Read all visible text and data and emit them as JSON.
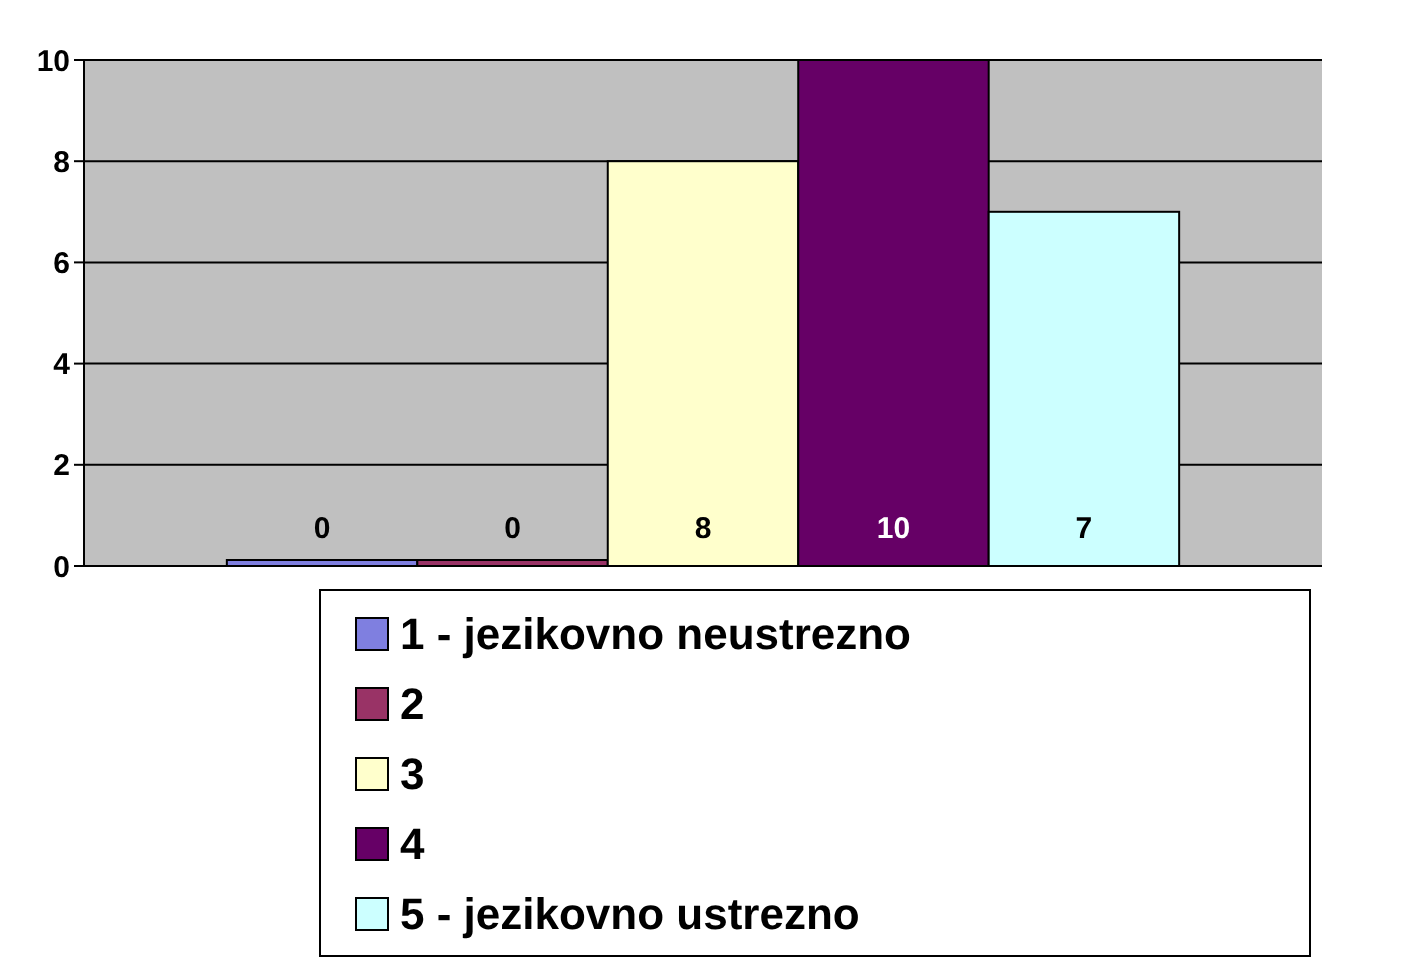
{
  "chart_data": {
    "type": "bar",
    "categories": [
      null
    ],
    "series": [
      {
        "name": "1 - jezikovno neustrezno",
        "color": "#7f7fe0",
        "values": [
          0
        ]
      },
      {
        "name": "2",
        "color": "#993366",
        "values": [
          0
        ]
      },
      {
        "name": "3",
        "color": "#ffffcc",
        "values": [
          8
        ]
      },
      {
        "name": "4",
        "color": "#660066",
        "values": [
          10
        ]
      },
      {
        "name": "5 - jezikovno ustrezno",
        "color": "#ccffff",
        "values": [
          7
        ]
      }
    ],
    "ylim": [
      0,
      10
    ],
    "yticks": [
      0,
      2,
      4,
      6,
      8,
      10
    ],
    "grid": "y",
    "data_labels": true,
    "legend": "bottom"
  }
}
